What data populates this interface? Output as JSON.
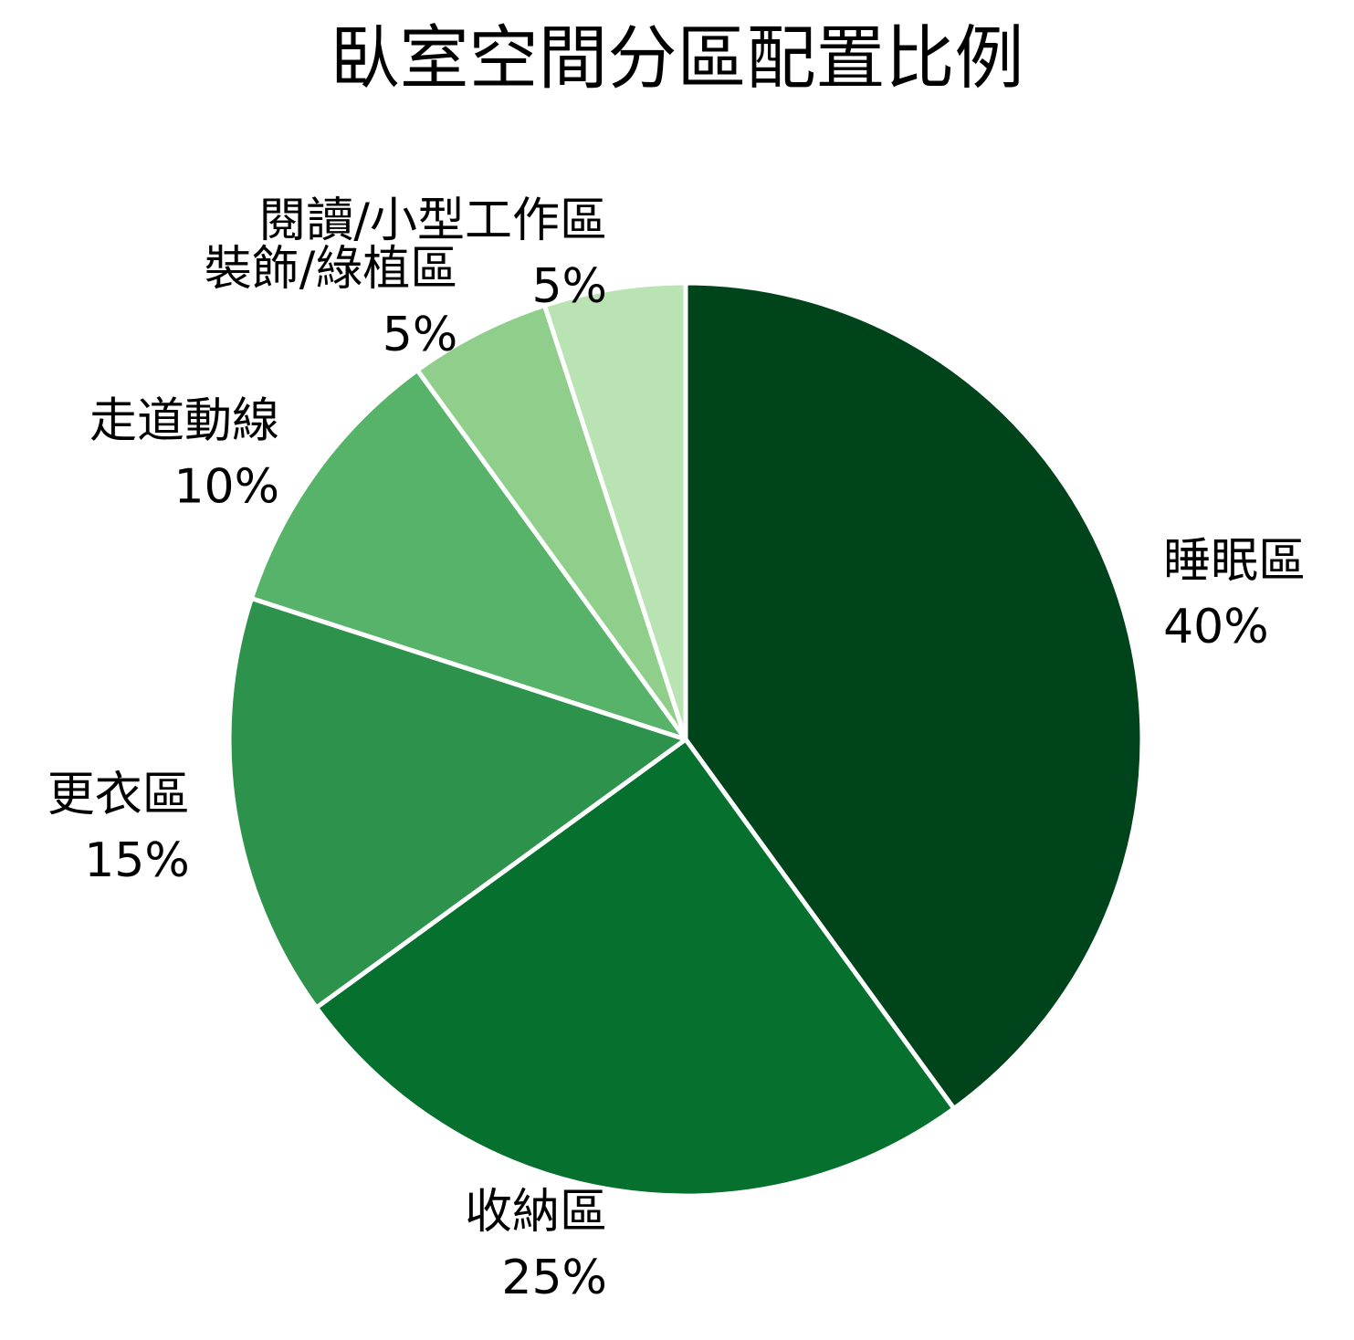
{
  "chart_data": {
    "type": "pie",
    "title": "臥室空間分區配置比例",
    "slices": [
      {
        "label": "睡眠區",
        "value": 40,
        "value_label": "40%",
        "color": "#00441b"
      },
      {
        "label": "收納區",
        "value": 25,
        "value_label": "25%",
        "color": "#06702e"
      },
      {
        "label": "更衣區",
        "value": 15,
        "value_label": "15%",
        "color": "#2d924b"
      },
      {
        "label": "走道動線",
        "value": 10,
        "value_label": "10%",
        "color": "#56b369"
      },
      {
        "label": "裝飾/綠植區",
        "value": 5,
        "value_label": "5%",
        "color": "#8fcf8b"
      },
      {
        "label": "閱讀/小型工作區",
        "value": 5,
        "value_label": "5%",
        "color": "#b9e3b2"
      }
    ],
    "start_angle": "top",
    "direction": "clockwise",
    "slice_border_color": "#ffffff"
  }
}
